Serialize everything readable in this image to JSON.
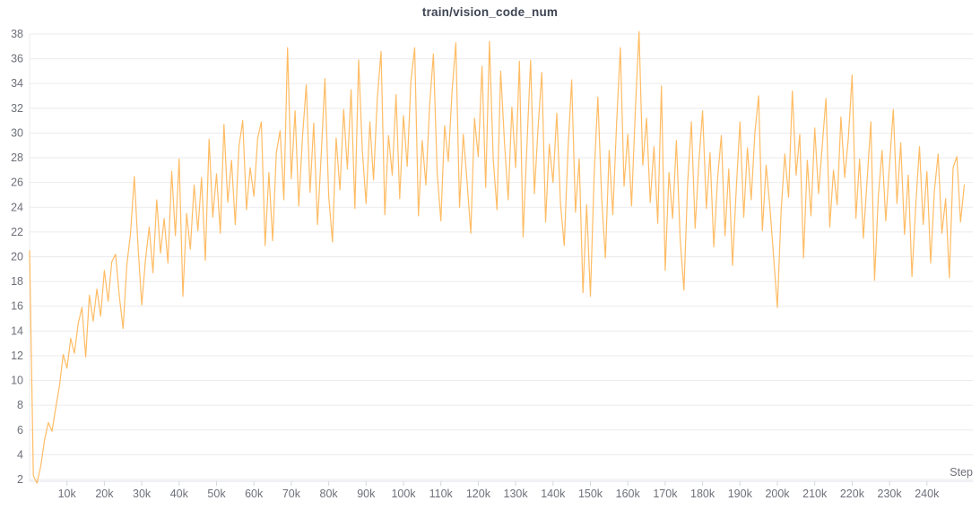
{
  "header": {
    "title": "train/vision_code_num"
  },
  "axes": {
    "x_name": "Step",
    "x_tick_labels": [
      "10k",
      "20k",
      "30k",
      "40k",
      "50k",
      "60k",
      "70k",
      "80k",
      "90k",
      "100k",
      "110k",
      "120k",
      "130k",
      "140k",
      "150k",
      "160k",
      "170k",
      "180k",
      "190k",
      "200k",
      "210k",
      "220k",
      "230k",
      "240k"
    ],
    "y_tick_labels": [
      "2",
      "4",
      "6",
      "8",
      "10",
      "12",
      "14",
      "16",
      "18",
      "20",
      "22",
      "24",
      "26",
      "28",
      "30",
      "32",
      "34",
      "36",
      "38"
    ]
  },
  "colors": {
    "line": "#FFAB3D",
    "grid": "#ebebee",
    "axis": "#dfe2e8",
    "tick": "#d4d7de",
    "label": "#6e7079",
    "title": "#3e4554",
    "background": "#ffffff"
  },
  "chart_data": {
    "type": "line",
    "title": "train/vision_code_num",
    "xlabel": "Step",
    "ylabel": "",
    "legend": "none",
    "grid": true,
    "x_start": 0,
    "x_step": 1000,
    "xlim": [
      0,
      252500
    ],
    "ylim": [
      1.6,
      38.5
    ],
    "y_ticks": [
      2,
      4,
      6,
      8,
      10,
      12,
      14,
      16,
      18,
      20,
      22,
      24,
      26,
      28,
      30,
      32,
      34,
      36,
      38
    ],
    "x_ticks": [
      10000,
      20000,
      30000,
      40000,
      50000,
      60000,
      70000,
      80000,
      90000,
      100000,
      110000,
      120000,
      130000,
      140000,
      150000,
      160000,
      170000,
      180000,
      190000,
      200000,
      210000,
      220000,
      230000,
      240000
    ],
    "series": [
      {
        "name": "train/vision_code_num",
        "color": "#FFAB3D",
        "values": [
          20.5,
          2.3,
          1.7,
          3.1,
          5.2,
          6.6,
          5.9,
          7.8,
          9.6,
          12.1,
          11.0,
          13.4,
          12.2,
          14.6,
          15.9,
          11.9,
          16.9,
          14.8,
          17.4,
          15.2,
          18.9,
          16.4,
          19.6,
          20.2,
          16.8,
          14.2,
          19.3,
          21.9,
          26.5,
          20.9,
          16.1,
          19.8,
          22.4,
          18.7,
          24.6,
          20.3,
          23.1,
          19.5,
          26.9,
          21.7,
          27.9,
          16.8,
          23.5,
          20.6,
          25.8,
          22.1,
          26.4,
          19.7,
          29.5,
          23.2,
          26.7,
          21.9,
          30.7,
          24.4,
          27.8,
          22.6,
          28.9,
          31.0,
          23.8,
          27.2,
          24.9,
          29.6,
          30.9,
          20.9,
          26.8,
          21.3,
          28.4,
          30.2,
          24.6,
          36.9,
          26.3,
          31.8,
          24.1,
          29.7,
          33.9,
          25.2,
          30.8,
          22.6,
          28.3,
          34.4,
          24.9,
          21.2,
          29.6,
          25.4,
          31.9,
          27.1,
          33.5,
          23.9,
          35.9,
          28.6,
          24.3,
          30.9,
          26.2,
          32.8,
          36.6,
          23.4,
          29.8,
          26.6,
          33.1,
          24.7,
          31.4,
          27.3,
          34.2,
          36.9,
          23.3,
          29.4,
          25.8,
          32.3,
          36.4,
          26.9,
          22.9,
          30.6,
          27.7,
          33.4,
          37.3,
          24.0,
          29.9,
          26.1,
          21.9,
          31.2,
          28.1,
          35.4,
          25.6,
          37.4,
          27.9,
          23.8,
          35.0,
          29.3,
          24.6,
          32.1,
          27.2,
          35.8,
          21.6,
          28.8,
          35.9,
          25.1,
          30.4,
          34.9,
          22.8,
          29.1,
          26.0,
          31.6,
          24.3,
          20.9,
          28.7,
          34.3,
          23.6,
          27.9,
          17.1,
          24.2,
          16.8,
          26.7,
          32.9,
          24.8,
          19.9,
          28.6,
          23.4,
          30.8,
          36.9,
          25.7,
          29.9,
          24.1,
          31.7,
          38.2,
          27.4,
          31.2,
          24.4,
          28.9,
          22.7,
          33.8,
          18.9,
          26.8,
          23.1,
          29.4,
          21.4,
          17.3,
          25.9,
          30.9,
          22.3,
          27.6,
          31.8,
          23.9,
          28.4,
          20.8,
          26.3,
          29.8,
          21.7,
          27.1,
          19.3,
          25.4,
          30.9,
          23.2,
          28.8,
          24.6,
          30.1,
          33.0,
          22.1,
          27.4,
          24.0,
          20.0,
          15.9,
          23.7,
          28.3,
          24.8,
          33.4,
          26.6,
          29.9,
          19.9,
          27.8,
          23.3,
          30.4,
          25.1,
          28.9,
          32.8,
          22.4,
          27.0,
          24.2,
          31.3,
          26.4,
          29.6,
          34.7,
          23.1,
          27.9,
          21.5,
          26.2,
          30.9,
          18.1,
          24.9,
          28.6,
          22.9,
          27.4,
          31.9,
          24.3,
          29.2,
          21.8,
          26.6,
          18.4,
          24.1,
          28.9,
          22.6,
          26.9,
          19.5,
          25.3,
          28.3,
          21.9,
          24.7,
          18.3,
          27.2,
          28.1,
          22.8,
          25.8
        ]
      }
    ]
  }
}
